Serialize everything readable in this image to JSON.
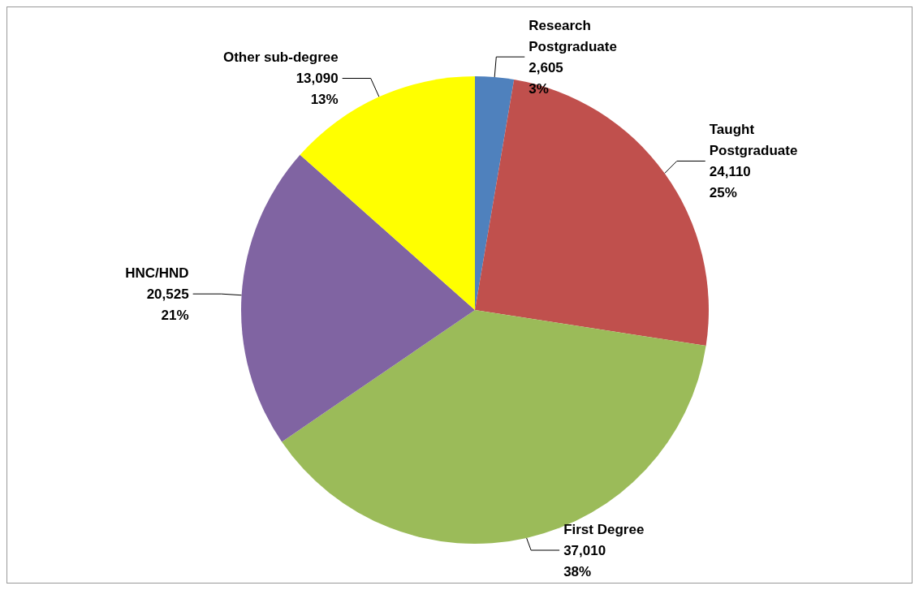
{
  "chart_data": {
    "type": "pie",
    "categories": [
      "Research Postgraduate",
      "Taught Postgraduate",
      "First Degree",
      "HNC/HND",
      "Other sub-degree"
    ],
    "values": [
      2605,
      24110,
      37010,
      20525,
      13090
    ],
    "colors": [
      "#4f81bd",
      "#c0504d",
      "#9bbb59",
      "#8064a2",
      "#ffff00"
    ],
    "value_labels": [
      "2,605\n3%",
      "24,110\n25%",
      "37,010\n38%",
      "20,525\n21%",
      "13,090\n13%"
    ],
    "legend": false
  }
}
